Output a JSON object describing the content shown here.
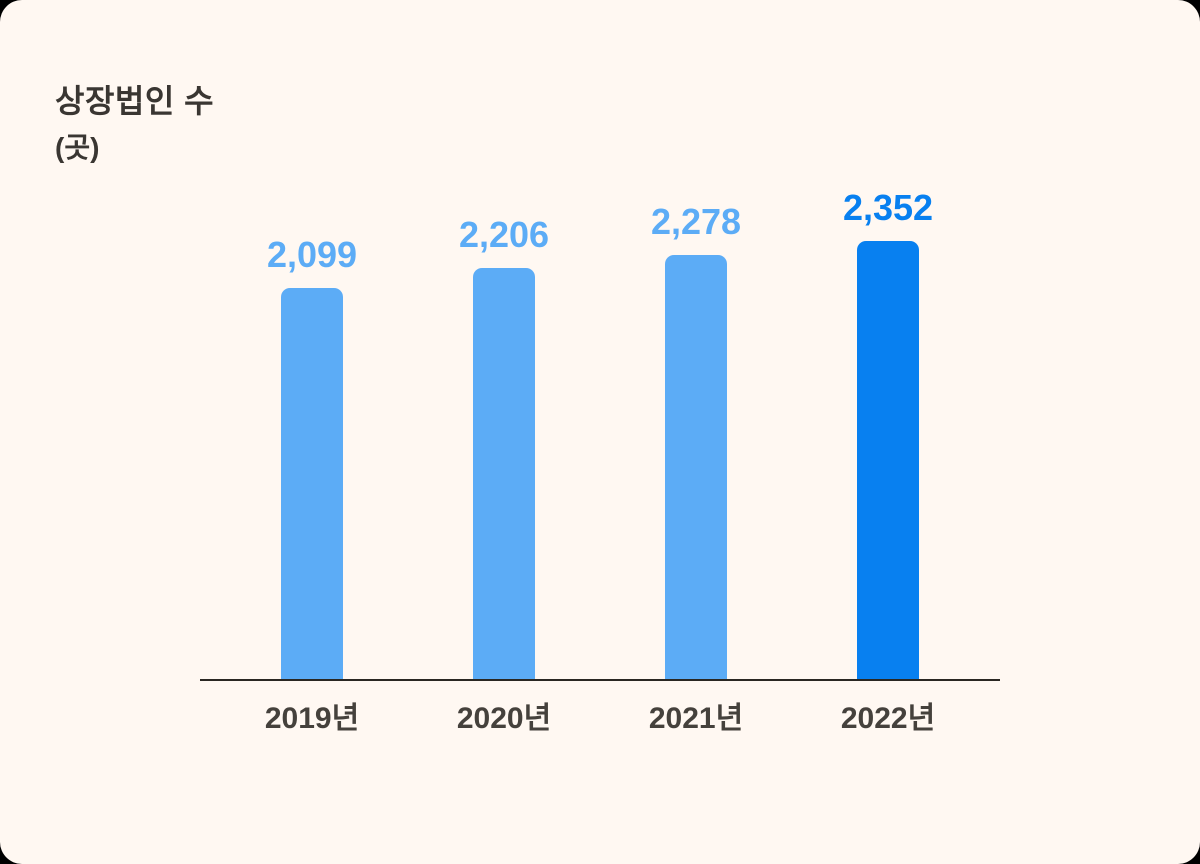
{
  "header": {
    "title": "상장법인 수",
    "unit": "(곳)"
  },
  "chart_data": {
    "type": "bar",
    "title": "상장법인 수",
    "unit_label": "(곳)",
    "categories": [
      "2019년",
      "2020년",
      "2021년",
      "2022년"
    ],
    "values": [
      2099,
      2206,
      2278,
      2352
    ],
    "value_labels": [
      "2,099",
      "2,206",
      "2,278",
      "2,352"
    ],
    "xlabel": "",
    "ylabel": "곳",
    "ylim": [
      0,
      2352
    ],
    "grid": false,
    "legend": false,
    "data_labels_position": "above-bar",
    "highlight_index": 3,
    "bar_color_default": "#5CACF6",
    "bar_color_highlight": "#0880F0"
  },
  "colors": {
    "background": "#FFF8F2",
    "outer_background": "#000000",
    "title_text": "#3A3632",
    "axis_line": "#2A2722",
    "tick_label_text": "#45413C",
    "bar_light_blue": "#5CACF6",
    "bar_dark_blue": "#0880F0"
  }
}
